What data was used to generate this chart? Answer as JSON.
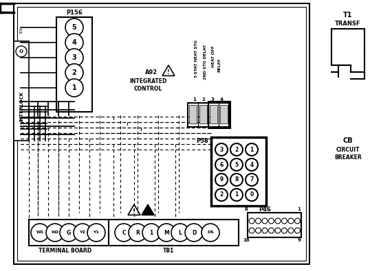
{
  "bg_color": "#ffffff",
  "line_color": "#000000",
  "fig_width": 5.54,
  "fig_height": 3.95,
  "dpi": 100,
  "p156_label": "P156",
  "p156_pins": [
    "5",
    "4",
    "3",
    "2",
    "1"
  ],
  "a92_label": [
    "A92",
    "INTEGRATED",
    "CONTROL"
  ],
  "tb_left_pins": [
    "W1",
    "W2",
    "G",
    "Y2",
    "Y1"
  ],
  "tb_right_pins": [
    "C",
    "R",
    "1",
    "M",
    "L",
    "D",
    "DS"
  ],
  "tb_left_label": "TERMINAL BOARD",
  "tb_right_label": "TB1",
  "p58_label": "P58",
  "p58_pins": [
    [
      "3",
      "2",
      "1"
    ],
    [
      "6",
      "5",
      "4"
    ],
    [
      "9",
      "8",
      "7"
    ],
    [
      "2",
      "1",
      "0"
    ]
  ],
  "p46_label": "P46",
  "t1_label": [
    "T1",
    "TRANSF"
  ],
  "cb_label": [
    "CB",
    "CIRCUIT",
    "BREAKER"
  ]
}
